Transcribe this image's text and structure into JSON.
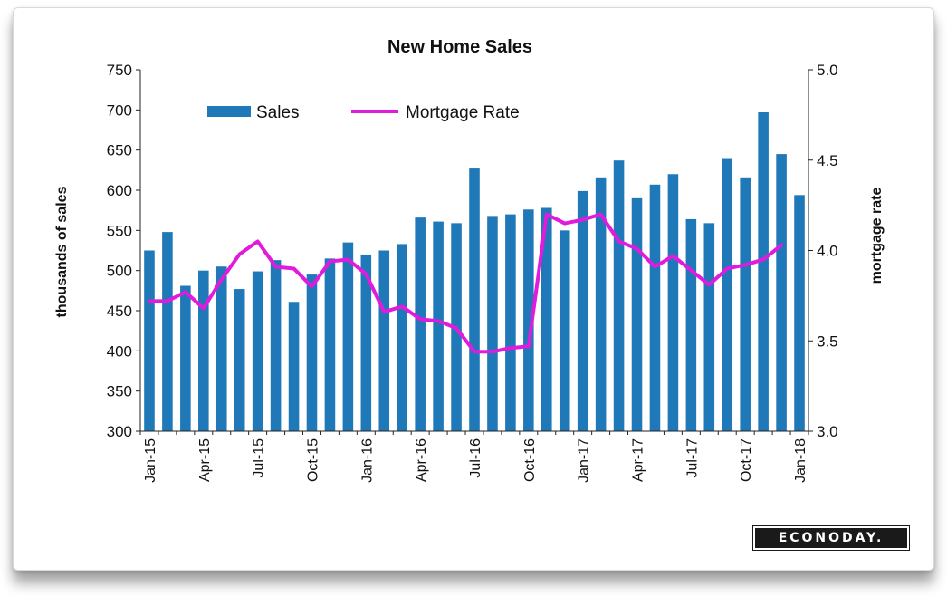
{
  "chart_data": {
    "type": "bar",
    "title": "New Home Sales",
    "ylabel": "thousands of sales",
    "y2label": "mortgage rate",
    "ylim": [
      300,
      750
    ],
    "y2lim": [
      3.0,
      5.0
    ],
    "yticks": [
      "300",
      "350",
      "400",
      "450",
      "500",
      "550",
      "600",
      "650",
      "700",
      "750"
    ],
    "y2ticks": [
      "3.0",
      "3.5",
      "4.0",
      "4.5",
      "5.0"
    ],
    "xtick_labels": [
      "Jan-15",
      "Apr-15",
      "Jul-15",
      "Oct-15",
      "Jan-16",
      "Apr-16",
      "Jul-16",
      "Oct-16",
      "Jan-17",
      "Apr-17",
      "Jul-17",
      "Oct-17",
      "Jan-18"
    ],
    "xtick_indices": [
      0,
      3,
      6,
      9,
      12,
      15,
      18,
      21,
      24,
      27,
      30,
      33,
      36
    ],
    "legend_position": "top-left",
    "series": [
      {
        "name": "Sales",
        "type": "bar",
        "axis": "left",
        "color": "#1f78b8",
        "values": [
          525,
          548,
          481,
          500,
          505,
          477,
          499,
          513,
          461,
          495,
          515,
          535,
          520,
          525,
          533,
          566,
          561,
          559,
          627,
          568,
          570,
          576,
          578,
          550,
          599,
          616,
          637,
          590,
          607,
          620,
          564,
          559,
          640,
          616,
          697,
          645,
          594
        ]
      },
      {
        "name": "Mortgage Rate",
        "type": "line",
        "axis": "right",
        "color": "#e11bdc",
        "values": [
          3.72,
          3.72,
          3.77,
          3.68,
          3.84,
          3.98,
          4.05,
          3.91,
          3.9,
          3.8,
          3.94,
          3.95,
          3.87,
          3.66,
          3.69,
          3.62,
          3.61,
          3.57,
          3.44,
          3.44,
          3.46,
          3.47,
          4.2,
          4.15,
          4.17,
          4.2,
          4.05,
          4.01,
          3.91,
          3.97,
          3.89,
          3.81,
          3.9,
          3.92,
          3.95,
          4.03
        ]
      }
    ]
  },
  "branding": {
    "logo_text": "ECONODAY."
  }
}
